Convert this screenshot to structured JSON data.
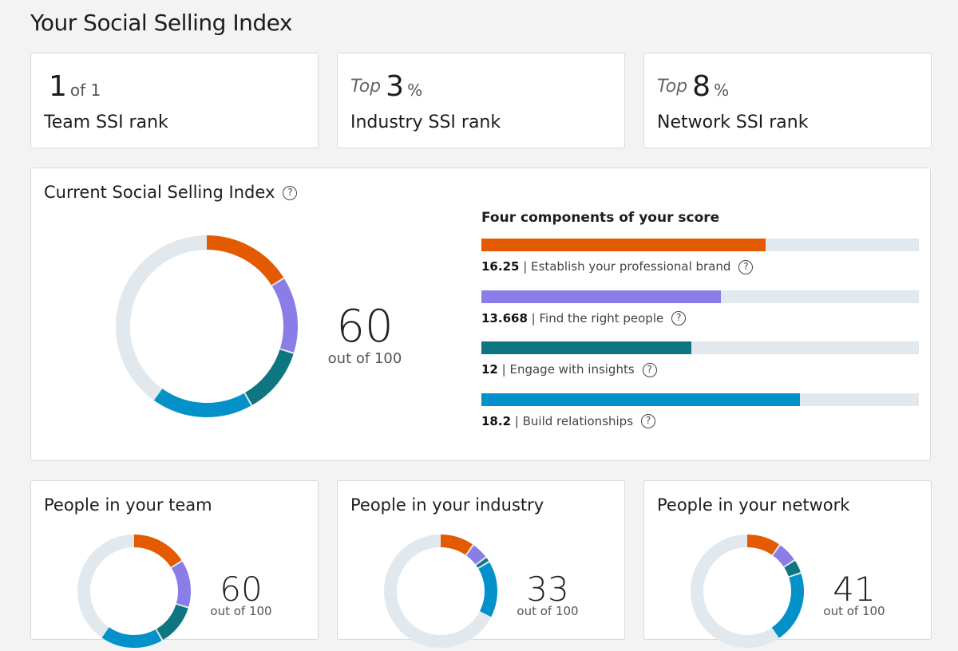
{
  "page_title": "Your Social Selling Index",
  "ranks": [
    {
      "prefix": "",
      "value": "1",
      "suffix": "of 1",
      "label": "Team SSI rank"
    },
    {
      "prefix": "Top",
      "value": "3",
      "suffix": "%",
      "label": "Industry SSI rank"
    },
    {
      "prefix": "Top",
      "value": "8",
      "suffix": "%",
      "label": "Network SSI rank"
    }
  ],
  "current": {
    "title": "Current Social Selling Index",
    "score": "60",
    "out_of": "out of 100",
    "components_title": "Four components of your score",
    "components": [
      {
        "value": 16.25,
        "label": "Establish your professional brand",
        "color": "#e35a00"
      },
      {
        "value": 13.668,
        "label": "Find the right people",
        "color": "#8a7de8"
      },
      {
        "value": 12,
        "label": "Engage with insights",
        "color": "#0e7680"
      },
      {
        "value": 18.2,
        "label": "Build relationships",
        "color": "#0391ca"
      }
    ],
    "component_max": 25
  },
  "peers": [
    {
      "title": "People in your team",
      "score": "60",
      "out_of": "out of 100",
      "segments": [
        16.25,
        13.668,
        12,
        18.2
      ]
    },
    {
      "title": "People in your industry",
      "score": "33",
      "out_of": "out of 100",
      "segments": [
        10,
        5,
        1.5,
        16.5
      ]
    },
    {
      "title": "People in your network",
      "score": "41",
      "out_of": "out of 100",
      "segments": [
        10,
        6,
        4,
        21
      ]
    }
  ],
  "track_color": "#e1e8ee"
}
